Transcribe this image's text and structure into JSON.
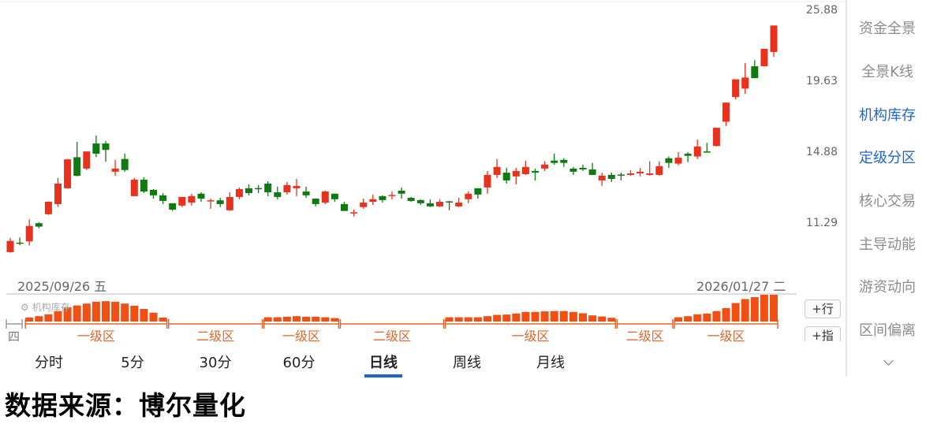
{
  "chart_data": {
    "type": "candlestick",
    "y_scale": "log",
    "y_ticks": [
      "25.88",
      "19.63",
      "14.88",
      "11.29"
    ],
    "y_range": [
      10.0,
      25.88
    ],
    "x_labels": {
      "start": "2025/09/26 五",
      "end": "2026/01/27 二",
      "prev_day_fragment": "四"
    },
    "up_color": "#e8321e",
    "down_color": "#0f7a12",
    "candle_fields": [
      "open",
      "close",
      "high",
      "low"
    ],
    "candles": [
      [
        10.05,
        10.5,
        10.62,
        10.03
      ],
      [
        10.43,
        10.41,
        10.64,
        10.33
      ],
      [
        10.48,
        11.13,
        11.42,
        10.31
      ],
      [
        11.25,
        11.1,
        11.29,
        11.03
      ],
      [
        11.65,
        12.23,
        12.25,
        11.62
      ],
      [
        12.12,
        13.13,
        13.42,
        11.98
      ],
      [
        12.89,
        14.43,
        14.45,
        12.88
      ],
      [
        14.55,
        13.53,
        15.44,
        13.5
      ],
      [
        13.92,
        14.88,
        14.88,
        13.84
      ],
      [
        15.35,
        14.75,
        15.83,
        14.55
      ],
      [
        15.35,
        14.97,
        15.5,
        14.3
      ],
      [
        13.75,
        13.92,
        14.4,
        13.53
      ],
      [
        14.45,
        13.84,
        14.75,
        13.75
      ],
      [
        12.5,
        13.33,
        13.42,
        12.5
      ],
      [
        13.33,
        12.73,
        13.46,
        12.65
      ],
      [
        12.81,
        12.54,
        12.85,
        12.38
      ],
      [
        12.54,
        12.27,
        12.65,
        12.12
      ],
      [
        12.16,
        11.86,
        12.16,
        11.8
      ],
      [
        12.05,
        12.46,
        12.46,
        11.98
      ],
      [
        12.19,
        12.5,
        12.62,
        12.05
      ],
      [
        12.62,
        12.38,
        12.69,
        12.23
      ],
      [
        12.27,
        12.3,
        12.38,
        11.9
      ],
      [
        12.3,
        12.12,
        12.42,
        11.98
      ],
      [
        11.83,
        12.46,
        12.69,
        11.8
      ],
      [
        12.46,
        12.85,
        12.93,
        12.35
      ],
      [
        12.89,
        12.65,
        13.09,
        12.54
      ],
      [
        12.9,
        12.88,
        13.05,
        12.65
      ],
      [
        13.13,
        12.69,
        13.25,
        12.5
      ],
      [
        12.69,
        12.46,
        12.97,
        12.35
      ],
      [
        12.69,
        13.05,
        13.21,
        12.58
      ],
      [
        12.89,
        13.01,
        13.37,
        12.5
      ],
      [
        12.73,
        12.54,
        12.97,
        12.42
      ],
      [
        12.38,
        12.12,
        12.38,
        12.01
      ],
      [
        12.19,
        12.73,
        12.77,
        12.12
      ],
      [
        12.62,
        12.35,
        12.62,
        12.23
      ],
      [
        12.12,
        11.8,
        12.23,
        11.8
      ],
      [
        11.7,
        11.74,
        11.86,
        11.55
      ],
      [
        11.98,
        12.19,
        12.38,
        11.9
      ],
      [
        12.23,
        12.35,
        12.58,
        12.08
      ],
      [
        12.5,
        12.31,
        12.54,
        12.19
      ],
      [
        12.52,
        12.56,
        12.73,
        12.35
      ],
      [
        12.77,
        12.62,
        12.93,
        12.38
      ],
      [
        12.42,
        12.27,
        12.46,
        12.23
      ],
      [
        12.31,
        12.16,
        12.35,
        12.08
      ],
      [
        12.16,
        12.01,
        12.35,
        11.98
      ],
      [
        12.01,
        12.23,
        12.35,
        11.98
      ],
      [
        12.25,
        12.21,
        12.27,
        11.83
      ],
      [
        12.01,
        12.19,
        12.42,
        11.98
      ],
      [
        12.35,
        12.62,
        12.73,
        12.16
      ],
      [
        12.89,
        12.58,
        12.89,
        12.38
      ],
      [
        12.93,
        13.58,
        13.79,
        12.62
      ],
      [
        13.58,
        14.01,
        14.45,
        13.42
      ],
      [
        13.7,
        13.29,
        13.96,
        13.13
      ],
      [
        13.5,
        13.79,
        13.96,
        13.09
      ],
      [
        13.62,
        14.01,
        14.36,
        13.58
      ],
      [
        13.79,
        13.7,
        13.92,
        13.29
      ],
      [
        13.92,
        14.13,
        14.32,
        13.79
      ],
      [
        14.36,
        14.23,
        14.75,
        14.13
      ],
      [
        14.4,
        14.23,
        14.49,
        14.01
      ],
      [
        13.92,
        13.75,
        14.01,
        13.58
      ],
      [
        13.96,
        13.87,
        14.13,
        13.79
      ],
      [
        13.87,
        13.58,
        14.23,
        13.58
      ],
      [
        13.29,
        13.54,
        13.7,
        13.01
      ],
      [
        13.58,
        13.37,
        13.7,
        13.21
      ],
      [
        13.6,
        13.56,
        13.7,
        13.29
      ],
      [
        13.58,
        13.66,
        13.83,
        13.54
      ],
      [
        13.66,
        13.75,
        13.96,
        13.5
      ],
      [
        13.58,
        13.66,
        14.32,
        13.54
      ],
      [
        13.58,
        14.05,
        14.32,
        13.54
      ],
      [
        14.49,
        14.23,
        14.59,
        13.96
      ],
      [
        14.19,
        14.52,
        14.84,
        14.09
      ],
      [
        14.75,
        14.63,
        14.84,
        14.27
      ],
      [
        14.59,
        15.17,
        15.58,
        14.45
      ],
      [
        14.88,
        14.82,
        15.39,
        14.82
      ],
      [
        15.2,
        16.32,
        16.32,
        15.17
      ],
      [
        16.71,
        18.0,
        18.0,
        16.42
      ],
      [
        18.4,
        19.71,
        19.71,
        18.23
      ],
      [
        19.01,
        19.85,
        20.99,
        18.62
      ],
      [
        20.74,
        19.8,
        21.24,
        19.8
      ],
      [
        20.74,
        22.2,
        22.2,
        20.74
      ],
      [
        21.93,
        24.31,
        24.31,
        21.5
      ]
    ],
    "sub_panel": {
      "title": "机构库存",
      "bar_color": "#f05014",
      "zone_color": "#e0662e",
      "value_unit": "relative percent of max",
      "zones": [
        {
          "label": "一级区",
          "start": 3,
          "end": 17,
          "values": [
            15,
            20,
            27,
            39,
            53,
            60,
            67,
            74,
            76,
            74,
            67,
            59,
            47,
            33,
            15
          ]
        },
        {
          "label": "二级区",
          "start": 18,
          "end": 27,
          "values": []
        },
        {
          "label": "一级区",
          "start": 28,
          "end": 35,
          "values": [
            16,
            16,
            18,
            20,
            18,
            18,
            16,
            13
          ]
        },
        {
          "label": "二级区",
          "start": 36,
          "end": 46,
          "values": []
        },
        {
          "label": "一级区",
          "start": 47,
          "end": 64,
          "values": [
            16,
            16,
            16,
            16,
            20,
            25,
            26,
            30,
            36,
            36,
            38,
            39,
            39,
            36,
            31,
            23,
            19,
            14
          ]
        },
        {
          "label": "二级区",
          "start": 65,
          "end": 70,
          "values": []
        },
        {
          "label": "一级区",
          "start": 71,
          "end": 81,
          "values": [
            16,
            20,
            27,
            30,
            39,
            50,
            69,
            84,
            91,
            100,
            100
          ]
        }
      ]
    }
  },
  "panel_buttons": {
    "add_row": "+行",
    "add_indicator": "+指"
  },
  "tabs": [
    {
      "label": "分时",
      "active": false
    },
    {
      "label": "5分",
      "active": false
    },
    {
      "label": "30分",
      "active": false
    },
    {
      "label": "60分",
      "active": false
    },
    {
      "label": "日线",
      "active": true
    },
    {
      "label": "周线",
      "active": false
    },
    {
      "label": "月线",
      "active": false
    }
  ],
  "sidebar": {
    "items": [
      {
        "label": "资金全景",
        "active": false
      },
      {
        "label": "全景K线",
        "active": false
      },
      {
        "label": "机构库存",
        "active": true
      },
      {
        "label": "定级分区",
        "active": true
      },
      {
        "label": "核心交易",
        "active": false
      },
      {
        "label": "主导动能",
        "active": false
      },
      {
        "label": "游资动向",
        "active": false
      },
      {
        "label": "区间偏离",
        "active": false
      }
    ],
    "more_icon": "chevron-down-icon",
    "accent": "#1f64c8"
  },
  "footer": {
    "source": "数据来源：博尔量化"
  }
}
